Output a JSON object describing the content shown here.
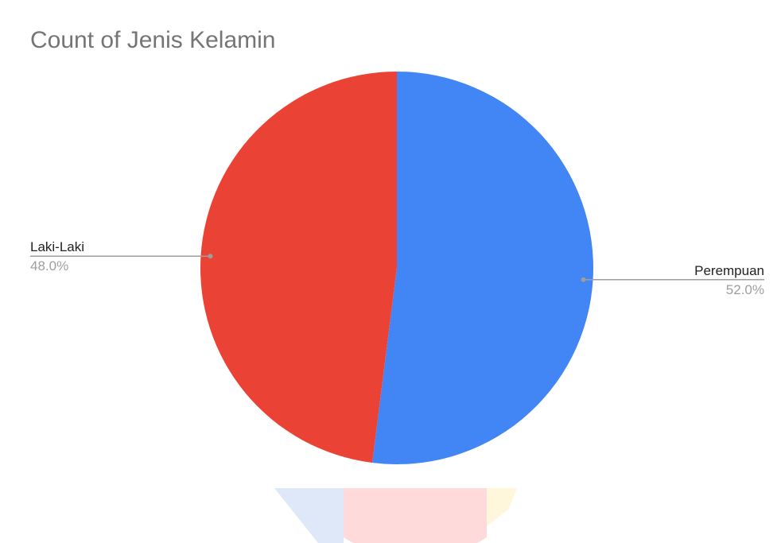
{
  "chart_data": {
    "type": "pie",
    "title": "Count of Jenis Kelamin",
    "slices": [
      {
        "label": "Perempuan",
        "value": 52.0,
        "percent_label": "52.0%",
        "color": "#4285F4"
      },
      {
        "label": "Laki-Laki",
        "value": 48.0,
        "percent_label": "48.0%",
        "color": "#EA4335"
      }
    ],
    "legend": "none",
    "slice_labels": "outside-with-leader-lines"
  }
}
